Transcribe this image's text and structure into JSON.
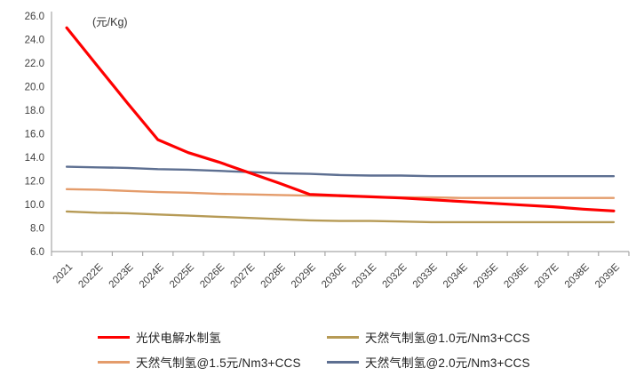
{
  "chart_data": {
    "type": "line",
    "title": "",
    "unit_label": "(元/Kg)",
    "xlabel": "",
    "ylabel": "元/Kg",
    "ylim": [
      6.0,
      26.0
    ],
    "ytick_step": 2.0,
    "grid": false,
    "legend_position": "bottom",
    "axis_color": "#A6A6A6",
    "label_color": "#404040",
    "categories": [
      "2021",
      "2022E",
      "2023E",
      "2024E",
      "2025E",
      "2026E",
      "2027E",
      "2028E",
      "2029E",
      "2030E",
      "2031E",
      "2032E",
      "2033E",
      "2034E",
      "2035E",
      "2036E",
      "2037E",
      "2038E",
      "2039E"
    ],
    "series": [
      {
        "name": "光伏电解水制氢",
        "color": "#FE0000",
        "width": 3.2,
        "values": [
          25.0,
          21.8,
          18.6,
          15.5,
          14.4,
          13.6,
          12.7,
          11.8,
          10.85,
          10.75,
          10.65,
          10.55,
          10.4,
          10.25,
          10.1,
          9.95,
          9.8,
          9.6,
          9.45
        ]
      },
      {
        "name": "天然气制氢@1.0元/Nm3+CCS",
        "color": "#B69A55",
        "width": 2.4,
        "values": [
          9.4,
          9.3,
          9.25,
          9.15,
          9.05,
          8.95,
          8.85,
          8.75,
          8.65,
          8.6,
          8.6,
          8.55,
          8.5,
          8.5,
          8.5,
          8.5,
          8.5,
          8.5,
          8.5
        ]
      },
      {
        "name": "天然气制氢@1.5元/Nm3+CCS",
        "color": "#E49C6B",
        "width": 2.4,
        "values": [
          11.3,
          11.25,
          11.15,
          11.05,
          11.0,
          10.9,
          10.85,
          10.8,
          10.75,
          10.7,
          10.65,
          10.6,
          10.6,
          10.55,
          10.55,
          10.55,
          10.55,
          10.55,
          10.55
        ]
      },
      {
        "name": "天然气制氢@2.0元/Nm3+CCS",
        "color": "#5D6F91",
        "width": 2.4,
        "values": [
          13.2,
          13.15,
          13.1,
          13.0,
          12.95,
          12.85,
          12.75,
          12.65,
          12.6,
          12.5,
          12.45,
          12.45,
          12.4,
          12.4,
          12.4,
          12.4,
          12.4,
          12.4,
          12.4
        ]
      }
    ]
  }
}
